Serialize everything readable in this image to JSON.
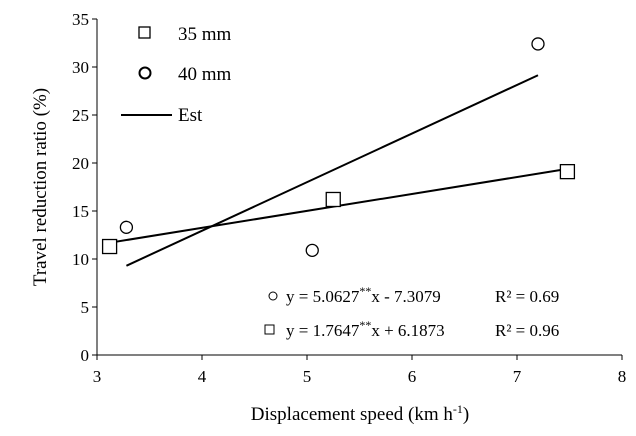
{
  "chart_data": {
    "type": "scatter",
    "xlabel": "Displacement speed (km h",
    "xlabel_sup": "-1",
    "xlabel_close": ")",
    "ylabel": "Travel reduction ratio (%)",
    "xlim": [
      3,
      8
    ],
    "ylim": [
      0,
      35
    ],
    "xticks": [
      3,
      4,
      5,
      6,
      7,
      8
    ],
    "yticks": [
      0,
      5,
      10,
      15,
      20,
      25,
      30,
      35
    ],
    "grid": false,
    "legend_position": "top-left",
    "series": [
      {
        "name": "35 mm",
        "marker": "square",
        "points": [
          {
            "x": 3.12,
            "y": 11.3
          },
          {
            "x": 5.25,
            "y": 16.2
          },
          {
            "x": 7.48,
            "y": 19.1
          }
        ],
        "fit": {
          "x_range": [
            3.05,
            7.48
          ],
          "slope": 1.7647,
          "intercept": 6.1873,
          "equation_prefix": "y = 1.7647",
          "equation_sup": "**",
          "equation_suffix": "x + 6.1873",
          "r2": "R² = 0.96"
        }
      },
      {
        "name": "40 mm",
        "marker": "circle",
        "points": [
          {
            "x": 3.28,
            "y": 13.3
          },
          {
            "x": 5.05,
            "y": 10.9
          },
          {
            "x": 7.2,
            "y": 32.4
          }
        ],
        "fit": {
          "x_range": [
            3.28,
            7.2
          ],
          "slope": 5.0627,
          "intercept": -7.3079,
          "equation_prefix": "y = 5.0627",
          "equation_sup": "**",
          "equation_suffix": "x - 7.3079",
          "r2": "R² = 0.69"
        }
      }
    ],
    "legend": {
      "est_label": "Est"
    }
  }
}
